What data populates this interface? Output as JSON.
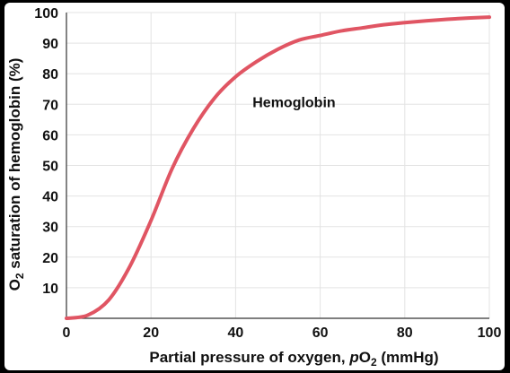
{
  "chart_data": {
    "type": "line",
    "xlabel": {
      "prefix": "Partial pressure of oxygen, ",
      "var": "p",
      "chem": "O",
      "sub": "2",
      "suffix": " (mmHg)"
    },
    "ylabel": {
      "chem": "O",
      "sub": "2",
      "text": " saturation of hemoglobin (%)"
    },
    "xlim": [
      0,
      100
    ],
    "ylim": [
      0,
      100
    ],
    "x_ticks": [
      "0",
      "20",
      "40",
      "60",
      "80",
      "100"
    ],
    "y_ticks": [
      "10",
      "20",
      "30",
      "40",
      "50",
      "60",
      "70",
      "80",
      "90",
      "100"
    ],
    "grid": true,
    "series": [
      {
        "name": "Hemoglobin",
        "color": "#e05563",
        "x": [
          0,
          5,
          10,
          15,
          20,
          25,
          30,
          35,
          40,
          45,
          50,
          55,
          60,
          65,
          70,
          75,
          80,
          85,
          90,
          95,
          100
        ],
        "y": [
          0,
          1,
          6,
          17,
          32,
          49,
          62,
          72,
          79,
          84,
          88,
          91,
          92.5,
          94,
          95,
          96,
          96.7,
          97.3,
          97.8,
          98.2,
          98.5
        ]
      }
    ]
  }
}
